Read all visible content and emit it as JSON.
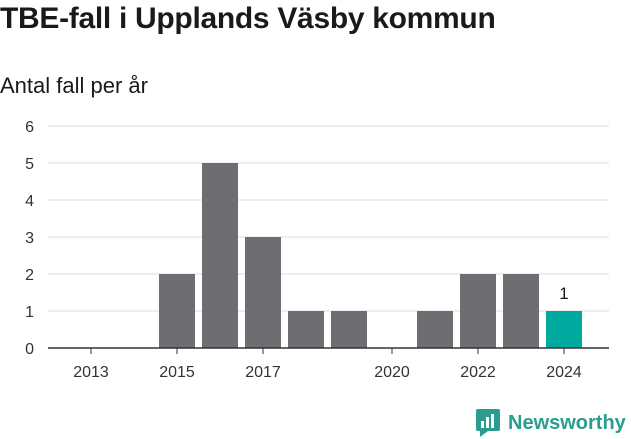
{
  "header": {
    "title": "TBE-fall i Upplands Väsby kommun",
    "subtitle": "Antal fall per år"
  },
  "brand": {
    "name": "Newsworthy",
    "icon": "newsworthy-logo-icon",
    "color": "#2a9d8f"
  },
  "chart_data": {
    "type": "bar",
    "title": "TBE-fall i Upplands Väsby kommun",
    "subtitle": "Antal fall per år",
    "categories": [
      "2013",
      "2014",
      "2015",
      "2016",
      "2017",
      "2018",
      "2019",
      "2020",
      "2021",
      "2022",
      "2023",
      "2024"
    ],
    "values": [
      0,
      0,
      2,
      5,
      3,
      1,
      1,
      0,
      1,
      2,
      2,
      1
    ],
    "x_tick_labels": [
      "2013",
      "2015",
      "2017",
      "2020",
      "2022",
      "2024"
    ],
    "y_ticks": [
      0,
      1,
      2,
      3,
      4,
      5,
      6
    ],
    "ylim": [
      0,
      6
    ],
    "grid": true,
    "highlight": {
      "category": "2024",
      "label": "1"
    },
    "colors": {
      "bar": "#6e6d72",
      "highlight": "#00a99d",
      "grid": "#dddddd",
      "axis": "#333333"
    }
  }
}
